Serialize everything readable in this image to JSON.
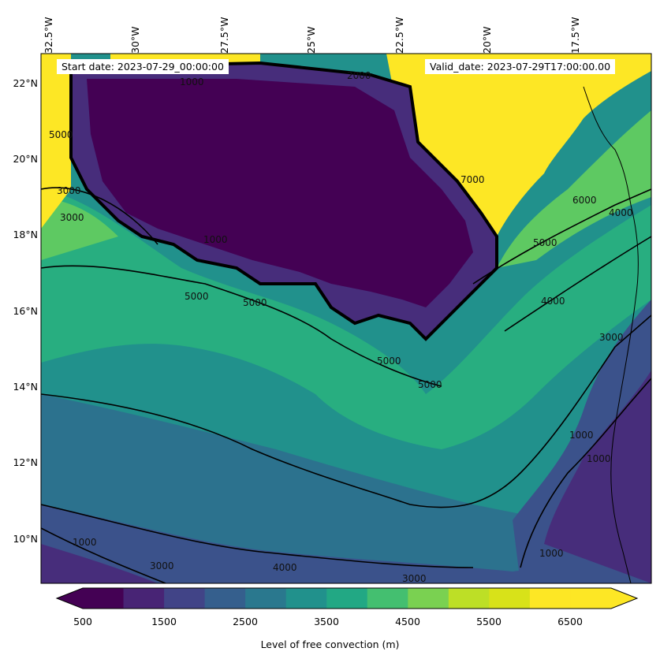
{
  "map": {
    "start_date": "Start date: 2023-07-29_00:00:00",
    "valid_date": "Valid_date: 2023-07-29T17:00:00.00",
    "lon_labels": [
      "32.5°W",
      "30°W",
      "27.5°W",
      "25°W",
      "22.5°W",
      "20°W",
      "17.5°W"
    ],
    "lat_labels": [
      "22°N",
      "20°N",
      "18°N",
      "16°N",
      "14°N",
      "12°N",
      "10°N"
    ],
    "contour_labels": [
      "1000",
      "5000",
      "5000",
      "3000",
      "1000",
      "5000",
      "5000",
      "5000",
      "7000",
      "6000",
      "4000",
      "5000",
      "4000",
      "3000",
      "2000",
      "3000",
      "1000",
      "1000",
      "3000",
      "4000",
      "3000",
      "1000",
      "1000"
    ],
    "colors": {
      "c500": "#440154",
      "c1000": "#472d7b",
      "c1500": "#3b528b",
      "c2500": "#2c728e",
      "c3500": "#21918c",
      "c4500": "#28ae80",
      "c5000": "#5ec962",
      "c5500": "#addc30",
      "c6500": "#fde725"
    }
  },
  "colorbar": {
    "ticks": [
      "500",
      "1500",
      "2500",
      "3500",
      "4500",
      "5500",
      "6500"
    ],
    "label": "Level of free convection (m)",
    "range": [
      500,
      7000
    ],
    "levels": [
      500,
      1000,
      1500,
      2000,
      2500,
      3000,
      3500,
      4000,
      4500,
      5000,
      5500,
      6000,
      6500,
      7000
    ]
  }
}
